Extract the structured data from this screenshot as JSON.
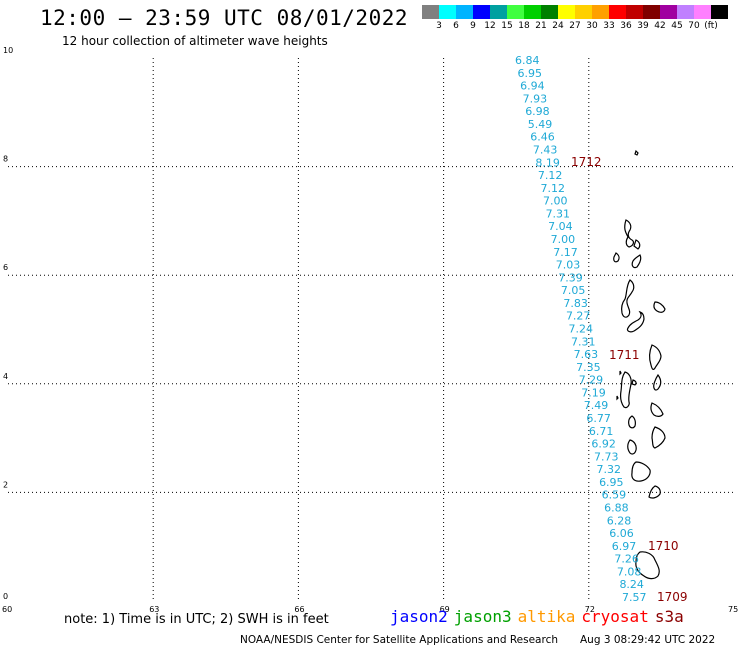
{
  "header": {
    "title": "12:00 – 23:59 UTC 08/01/2022",
    "subtitle": "12 hour collection of altimeter wave heights"
  },
  "color_scale": {
    "colors": [
      "#808080",
      "#00ffff",
      "#00b4ff",
      "#0000ff",
      "#00a0a0",
      "#40ff40",
      "#00d000",
      "#008000",
      "#ffff00",
      "#ffd000",
      "#ffa000",
      "#ff0000",
      "#c00000",
      "#800000",
      "#a000a0",
      "#c080ff",
      "#ff80ff",
      "#000000"
    ],
    "labels": [
      "3",
      "6",
      "9",
      "12",
      "15",
      "18",
      "21",
      "24",
      "27",
      "30",
      "33",
      "36",
      "39",
      "42",
      "45",
      "70",
      "(ft)"
    ]
  },
  "axes": {
    "x_ticks": [
      "60",
      "63",
      "66",
      "69",
      "72",
      "75"
    ],
    "y_ticks": [
      "0",
      "2",
      "4",
      "6",
      "8",
      "10"
    ]
  },
  "wave_heights": [
    {
      "v": "6.84"
    },
    {
      "v": "6.95"
    },
    {
      "v": "6.94"
    },
    {
      "v": "7.93"
    },
    {
      "v": "6.98"
    },
    {
      "v": "5.49"
    },
    {
      "v": "6.46"
    },
    {
      "v": "7.43"
    },
    {
      "v": "8.19"
    },
    {
      "v": "7.12"
    },
    {
      "v": "7.12"
    },
    {
      "v": "7.00"
    },
    {
      "v": "7.31"
    },
    {
      "v": "7.04"
    },
    {
      "v": "7.00"
    },
    {
      "v": "7.17"
    },
    {
      "v": "7.03"
    },
    {
      "v": "7.39"
    },
    {
      "v": "7.05"
    },
    {
      "v": "7.83"
    },
    {
      "v": "7.27"
    },
    {
      "v": "7.24"
    },
    {
      "v": "7.31"
    },
    {
      "v": "7.63"
    },
    {
      "v": "7.35"
    },
    {
      "v": "7.29"
    },
    {
      "v": "7.19"
    },
    {
      "v": "7.49"
    },
    {
      "v": "6.77"
    },
    {
      "v": "6.71"
    },
    {
      "v": "6.92"
    },
    {
      "v": "7.73"
    },
    {
      "v": "7.32"
    },
    {
      "v": "6.95"
    },
    {
      "v": "6.59"
    },
    {
      "v": "6.88"
    },
    {
      "v": "6.28"
    },
    {
      "v": "6.06"
    },
    {
      "v": "6.97"
    },
    {
      "v": "7.26"
    },
    {
      "v": "7.08"
    },
    {
      "v": "8.24"
    },
    {
      "v": "7.57"
    }
  ],
  "pass_times": [
    "1712",
    "1711",
    "1710",
    "1709"
  ],
  "footer": {
    "note": "note: 1) Time is in UTC; 2) SWH is in feet",
    "missions": [
      {
        "name": "jason2",
        "color": "#0000ff"
      },
      {
        "name": "jason3",
        "color": "#00a000"
      },
      {
        "name": "altika",
        "color": "#ff9900"
      },
      {
        "name": "cryosat",
        "color": "#ff0000"
      },
      {
        "name": "s3a",
        "color": "#8b0000"
      }
    ],
    "credit": "NOAA/NESDIS Center for Satellite Applications and Research",
    "timestamp": "Aug  3 08:29:42 UTC 2022"
  }
}
